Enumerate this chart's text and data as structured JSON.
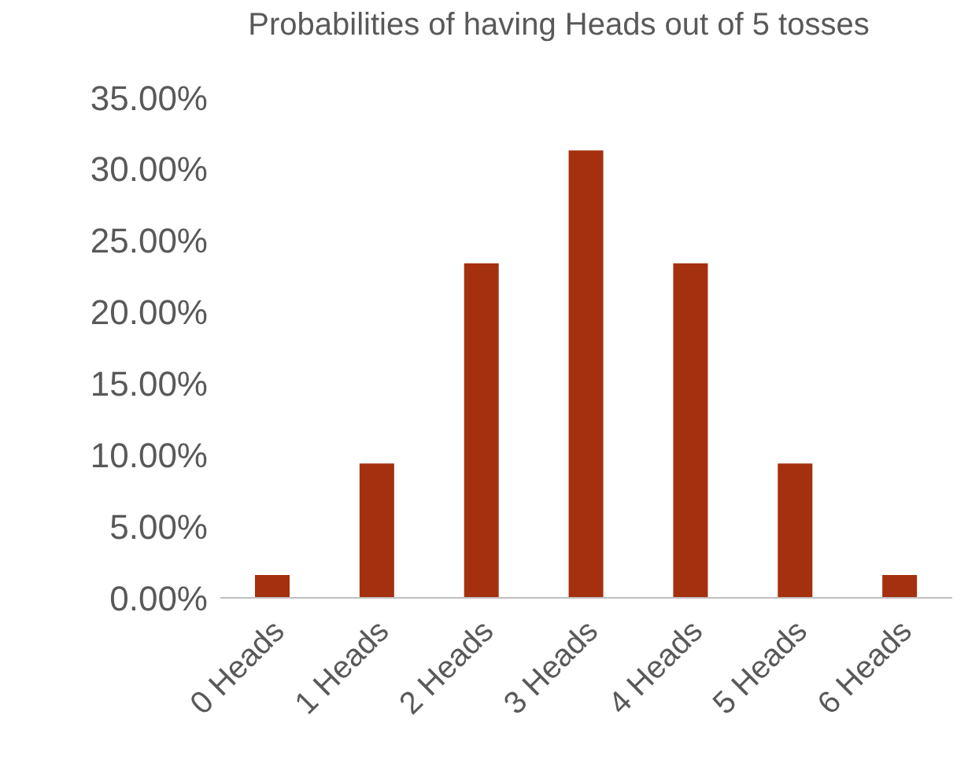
{
  "chart_data": {
    "type": "bar",
    "title": "Probabilities of having Heads out of 5 tosses",
    "categories": [
      "0 Heads",
      "1 Heads",
      "2 Heads",
      "3 Heads",
      "4 Heads",
      "5 Heads",
      "6 Heads"
    ],
    "values": [
      1.6,
      9.4,
      23.4,
      31.3,
      23.4,
      9.4,
      1.6
    ],
    "color": "#a5300f",
    "ylim": [
      0,
      35
    ],
    "yticks": [
      {
        "value": 0,
        "label": "0.00%"
      },
      {
        "value": 5,
        "label": "5.00%"
      },
      {
        "value": 10,
        "label": "10.00%"
      },
      {
        "value": 15,
        "label": "15.00%"
      },
      {
        "value": 20,
        "label": "20.00%"
      },
      {
        "value": 25,
        "label": "25.00%"
      },
      {
        "value": 30,
        "label": "30.00%"
      },
      {
        "value": 35,
        "label": "35.00%"
      }
    ],
    "grid": false
  }
}
